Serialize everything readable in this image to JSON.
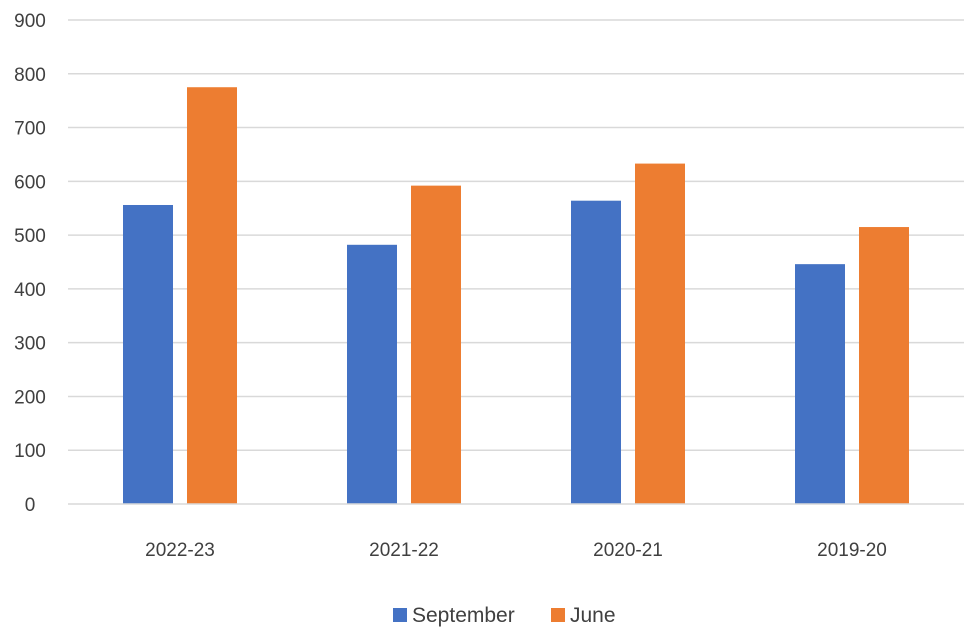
{
  "chart_data": {
    "type": "bar",
    "categories": [
      "2022-23",
      "2021-22",
      "2020-21",
      "2019-20"
    ],
    "series": [
      {
        "name": "September",
        "color": "#4472c4",
        "values": [
          556,
          482,
          564,
          446
        ]
      },
      {
        "name": "June",
        "color": "#ed7d31",
        "values": [
          775,
          592,
          633,
          515
        ]
      }
    ],
    "ylim": [
      0,
      900
    ],
    "yticks": [
      0,
      100,
      200,
      300,
      400,
      500,
      600,
      700,
      800,
      900
    ],
    "grid": true,
    "legend_position": "bottom"
  }
}
